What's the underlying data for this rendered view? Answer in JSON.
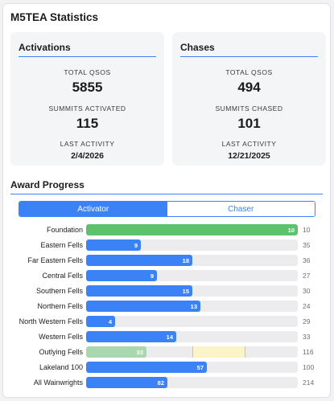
{
  "title": "M5TEA Statistics",
  "activations": {
    "title": "Activations",
    "total_qsos_label": "TOTAL QSOS",
    "total_qsos": "5855",
    "summits_label": "SUMMITS ACTIVATED",
    "summits": "115",
    "last_activity_label": "LAST ACTIVITY",
    "last_activity": "2/4/2026"
  },
  "chases": {
    "title": "Chases",
    "total_qsos_label": "TOTAL QSOS",
    "total_qsos": "494",
    "summits_label": "SUMMITS CHASED",
    "summits": "101",
    "last_activity_label": "LAST ACTIVITY",
    "last_activity": "12/21/2025"
  },
  "award": {
    "title": "Award Progress",
    "tabs": [
      "Activator",
      "Chaser"
    ],
    "active_tab": "Activator",
    "colors": {
      "progress": "#3b82f6",
      "complete": "#5cc26b",
      "partial": "#a9d8ae",
      "pending": "#fdf3c8"
    },
    "rows": [
      {
        "name": "Foundation",
        "value": "10",
        "total": "10",
        "style": "green"
      },
      {
        "name": "Eastern Fells",
        "value": "9",
        "total": "35",
        "style": "blue"
      },
      {
        "name": "Far Eastern Fells",
        "value": "18",
        "total": "36",
        "style": "blue"
      },
      {
        "name": "Central Fells",
        "value": "9",
        "total": "27",
        "style": "blue"
      },
      {
        "name": "Southern Fells",
        "value": "15",
        "total": "30",
        "style": "blue"
      },
      {
        "name": "Northern Fells",
        "value": "13",
        "total": "24",
        "style": "blue"
      },
      {
        "name": "North Western Fells",
        "value": "4",
        "total": "29",
        "style": "blue"
      },
      {
        "name": "Western Fells",
        "value": "14",
        "total": "33",
        "style": "blue"
      },
      {
        "name": "Outlying Fells",
        "value": "33",
        "total": "116",
        "style": "outlying"
      },
      {
        "name": "Lakeland 100",
        "value": "57",
        "total": "100",
        "style": "blue"
      },
      {
        "name": "All Wainwrights",
        "value": "82",
        "total": "214",
        "style": "blue"
      }
    ]
  }
}
